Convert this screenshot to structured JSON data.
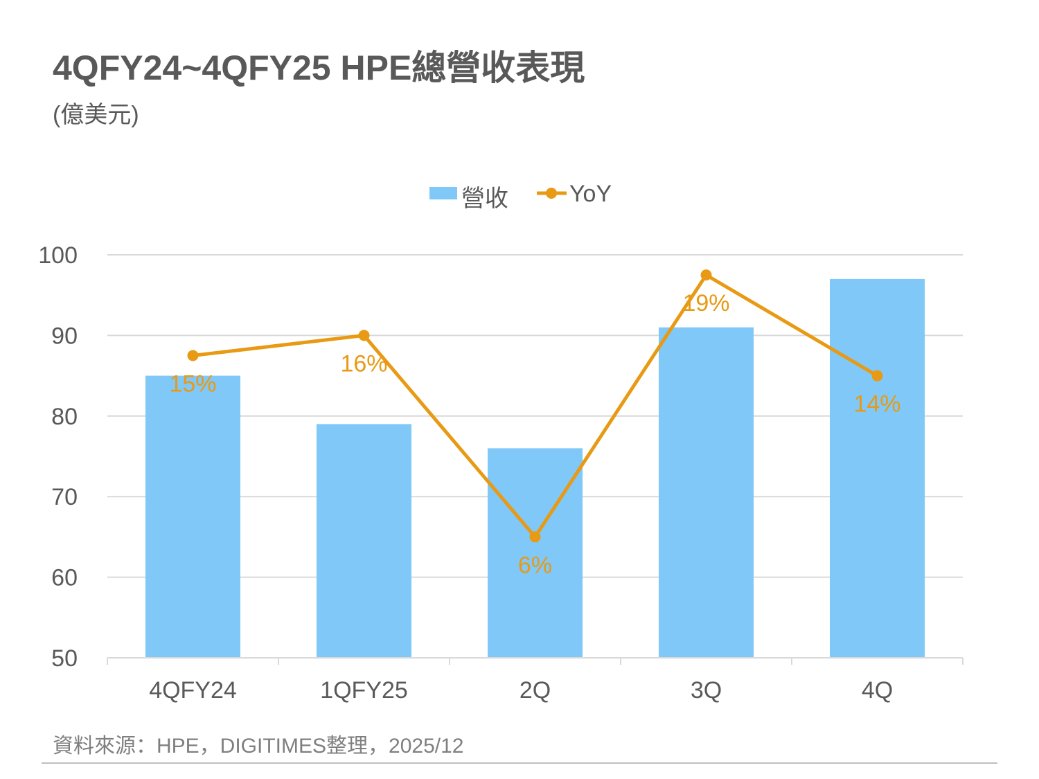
{
  "header": {
    "title": "4QFY24~4QFY25 HPE總營收表現",
    "unit": "(億美元)"
  },
  "source": "資料來源：HPE，DIGITIMES整理，2025/12",
  "colors": {
    "bar": "#7fc8f8",
    "line": "#e89a14",
    "grid": "#d9d9d9",
    "axis_text": "#595959"
  },
  "chart_data": {
    "type": "bar",
    "categories": [
      "4QFY24",
      "1QFY25",
      "2Q",
      "3Q",
      "4Q"
    ],
    "ylim": [
      50,
      100
    ],
    "yticks": [
      50,
      60,
      70,
      80,
      90,
      100
    ],
    "grid": true,
    "legend_position": "top-center",
    "series": [
      {
        "name": "營收",
        "type": "bar",
        "values": [
          85,
          79,
          76,
          91,
          97
        ]
      },
      {
        "name": "YoY",
        "type": "line",
        "values": [
          15,
          16,
          6,
          19,
          14
        ],
        "labels": [
          "15%",
          "16%",
          "6%",
          "19%",
          "14%"
        ],
        "secondary_range": [
          0,
          20
        ]
      }
    ]
  }
}
